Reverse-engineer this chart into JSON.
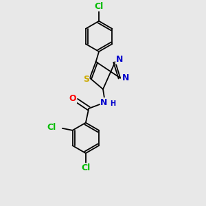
{
  "background_color": "#e8e8e8",
  "bond_color": "#000000",
  "atom_colors": {
    "C": "#000000",
    "N": "#0000cc",
    "S": "#ccaa00",
    "O": "#ff0000",
    "Cl": "#00bb00",
    "H": "#0000cc"
  },
  "font_size": 8,
  "figsize": [
    3.0,
    3.0
  ],
  "dpi": 100
}
